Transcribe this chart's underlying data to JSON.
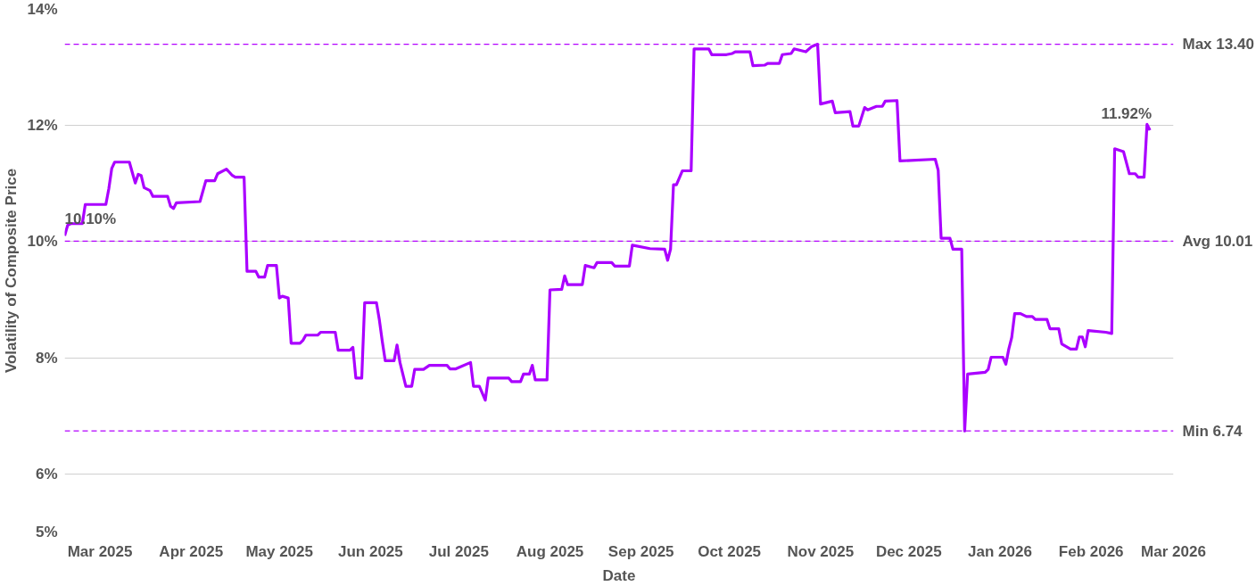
{
  "chart_data": {
    "type": "line",
    "xlabel": "Date",
    "ylabel": "Volatility of Composite Price",
    "x": [
      "2025-02-17",
      "2025-02-18",
      "2025-02-19",
      "2025-02-23",
      "2025-02-24",
      "2025-03-03",
      "2025-03-04",
      "2025-03-05",
      "2025-03-06",
      "2025-03-11",
      "2025-03-12",
      "2025-03-13",
      "2025-03-14",
      "2025-03-15",
      "2025-03-16",
      "2025-03-18",
      "2025-03-19",
      "2025-03-24",
      "2025-03-25",
      "2025-03-26",
      "2025-03-27",
      "2025-04-04",
      "2025-04-06",
      "2025-04-09",
      "2025-04-10",
      "2025-04-13",
      "2025-04-15",
      "2025-04-16",
      "2025-04-19",
      "2025-04-20",
      "2025-04-23",
      "2025-04-24",
      "2025-04-26",
      "2025-04-27",
      "2025-04-30",
      "2025-05-01",
      "2025-05-02",
      "2025-05-04",
      "2025-05-05",
      "2025-05-08",
      "2025-05-09",
      "2025-05-10",
      "2025-05-14",
      "2025-05-15",
      "2025-05-20",
      "2025-05-21",
      "2025-05-25",
      "2025-05-26",
      "2025-05-27",
      "2025-05-29",
      "2025-05-30",
      "2025-06-03",
      "2025-06-04",
      "2025-06-05",
      "2025-06-06",
      "2025-06-09",
      "2025-06-10",
      "2025-06-11",
      "2025-06-13",
      "2025-06-15",
      "2025-06-16",
      "2025-06-19",
      "2025-06-21",
      "2025-06-27",
      "2025-06-28",
      "2025-06-30",
      "2025-07-05",
      "2025-07-06",
      "2025-07-08",
      "2025-07-10",
      "2025-07-11",
      "2025-07-18",
      "2025-07-19",
      "2025-07-22",
      "2025-07-23",
      "2025-07-25",
      "2025-07-26",
      "2025-07-27",
      "2025-07-31",
      "2025-08-01",
      "2025-08-05",
      "2025-08-06",
      "2025-08-07",
      "2025-08-12",
      "2025-08-13",
      "2025-08-16",
      "2025-08-17",
      "2025-08-22",
      "2025-08-23",
      "2025-08-28",
      "2025-08-29",
      "2025-09-04",
      "2025-09-09",
      "2025-09-10",
      "2025-09-11",
      "2025-09-12",
      "2025-09-13",
      "2025-09-15",
      "2025-09-18",
      "2025-09-19",
      "2025-09-24",
      "2025-09-25",
      "2025-09-30",
      "2025-10-02",
      "2025-10-03",
      "2025-10-08",
      "2025-10-09",
      "2025-10-13",
      "2025-10-14",
      "2025-10-18",
      "2025-10-19",
      "2025-10-22",
      "2025-10-23",
      "2025-10-27",
      "2025-10-29",
      "2025-10-31",
      "2025-11-01",
      "2025-11-05",
      "2025-11-06",
      "2025-11-11",
      "2025-11-12",
      "2025-11-14",
      "2025-11-16",
      "2025-11-17",
      "2025-11-20",
      "2025-11-22",
      "2025-11-23",
      "2025-11-27",
      "2025-11-28",
      "2025-12-10",
      "2025-12-11",
      "2025-12-12",
      "2025-12-15",
      "2025-12-16",
      "2025-12-19",
      "2025-12-20",
      "2025-12-21",
      "2025-12-27",
      "2025-12-28",
      "2025-12-29",
      "2026-01-02",
      "2026-01-03",
      "2026-01-04",
      "2026-01-05",
      "2026-01-06",
      "2026-01-08",
      "2026-01-10",
      "2026-01-12",
      "2026-01-13",
      "2026-01-17",
      "2026-01-18",
      "2026-01-21",
      "2026-01-22",
      "2026-01-25",
      "2026-01-27",
      "2026-01-28",
      "2026-01-29",
      "2026-01-30",
      "2026-01-31",
      "2026-02-06",
      "2026-02-08",
      "2026-02-09",
      "2026-02-12",
      "2026-02-13",
      "2026-02-14",
      "2026-02-16",
      "2026-02-17",
      "2026-02-19",
      "2026-02-20",
      "2026-02-21"
    ],
    "series": [
      {
        "color": "#aa00ff",
        "values": [
          10.1,
          10.28,
          10.31,
          10.31,
          10.64,
          10.64,
          10.91,
          11.26,
          11.37,
          11.37,
          11.19,
          11.01,
          11.16,
          11.14,
          10.93,
          10.88,
          10.78,
          10.78,
          10.61,
          10.57,
          10.67,
          10.69,
          11.05,
          11.05,
          11.17,
          11.25,
          11.14,
          11.11,
          11.11,
          9.49,
          9.49,
          9.39,
          9.39,
          9.59,
          9.59,
          9.03,
          9.06,
          9.03,
          8.25,
          8.25,
          8.3,
          8.39,
          8.39,
          8.44,
          8.44,
          8.13,
          8.13,
          8.18,
          7.65,
          7.65,
          8.95,
          8.95,
          8.65,
          8.28,
          7.95,
          7.95,
          8.22,
          7.92,
          7.51,
          7.51,
          7.8,
          7.8,
          7.87,
          7.87,
          7.81,
          7.81,
          7.92,
          7.51,
          7.51,
          7.27,
          7.65,
          7.65,
          7.59,
          7.59,
          7.72,
          7.72,
          7.87,
          7.62,
          7.62,
          9.17,
          9.18,
          9.41,
          9.26,
          9.26,
          9.59,
          9.55,
          9.64,
          9.64,
          9.58,
          9.58,
          9.94,
          9.88,
          9.87,
          9.68,
          9.87,
          10.98,
          10.98,
          11.22,
          11.22,
          13.32,
          13.32,
          13.22,
          13.22,
          13.24,
          13.27,
          13.27,
          13.03,
          13.04,
          13.07,
          13.07,
          13.22,
          13.24,
          13.32,
          13.27,
          13.36,
          13.4,
          12.37,
          12.42,
          12.22,
          12.24,
          11.99,
          11.99,
          12.31,
          12.27,
          12.33,
          12.33,
          12.42,
          12.43,
          11.39,
          11.42,
          11.23,
          10.06,
          10.06,
          9.87,
          9.87,
          6.74,
          7.72,
          7.75,
          7.8,
          8.01,
          8.01,
          7.89,
          8.15,
          8.35,
          8.76,
          8.76,
          8.71,
          8.71,
          8.66,
          8.66,
          8.5,
          8.5,
          8.24,
          8.15,
          8.15,
          8.36,
          8.36,
          8.19,
          8.47,
          8.44,
          8.42,
          11.6,
          11.55,
          11.36,
          11.17,
          11.17,
          11.11,
          11.11,
          12.02,
          11.92
        ]
      }
    ],
    "xlim": [
      "2025-02-17",
      "2026-03-01"
    ],
    "xticks": [
      {
        "value": "2025-03-01",
        "label": "Mar 2025"
      },
      {
        "value": "2025-04-01",
        "label": "Apr 2025"
      },
      {
        "value": "2025-05-01",
        "label": "May 2025"
      },
      {
        "value": "2025-06-01",
        "label": "Jun 2025"
      },
      {
        "value": "2025-07-01",
        "label": "Jul 2025"
      },
      {
        "value": "2025-08-01",
        "label": "Aug 2025"
      },
      {
        "value": "2025-09-01",
        "label": "Sep 2025"
      },
      {
        "value": "2025-10-01",
        "label": "Oct 2025"
      },
      {
        "value": "2025-11-01",
        "label": "Nov 2025"
      },
      {
        "value": "2025-12-01",
        "label": "Dec 2025"
      },
      {
        "value": "2026-01-01",
        "label": "Jan 2026"
      },
      {
        "value": "2026-02-01",
        "label": "Feb 2026"
      },
      {
        "value": "2026-03-01",
        "label": "Mar 2026"
      }
    ],
    "ylim": [
      5,
      14
    ],
    "yticks": [
      {
        "value": 5,
        "label": "5%"
      },
      {
        "value": 6,
        "label": "6%"
      },
      {
        "value": 8,
        "label": "8%"
      },
      {
        "value": 10,
        "label": "10%"
      },
      {
        "value": 12,
        "label": "12%"
      },
      {
        "value": 14,
        "label": "14%"
      }
    ],
    "grid": "y",
    "marker": "none",
    "line_style": "solid",
    "ref_lines": [
      {
        "axis": "y",
        "value": 13.4,
        "label": "Max 13.40",
        "color": "#b300ff",
        "line_style": "dashed"
      },
      {
        "axis": "y",
        "value": 10.01,
        "label": "Avg 10.01",
        "color": "#b300ff",
        "line_style": "dashed"
      },
      {
        "axis": "y",
        "value": 6.74,
        "label": "Min 6.74",
        "color": "#b300ff",
        "line_style": "dashed"
      }
    ],
    "annotations": [
      {
        "text": "10.10%",
        "x": "2025-02-17",
        "y": 10.1
      },
      {
        "text": "11.92%",
        "x": "2026-02-21",
        "y": 11.92
      }
    ]
  }
}
